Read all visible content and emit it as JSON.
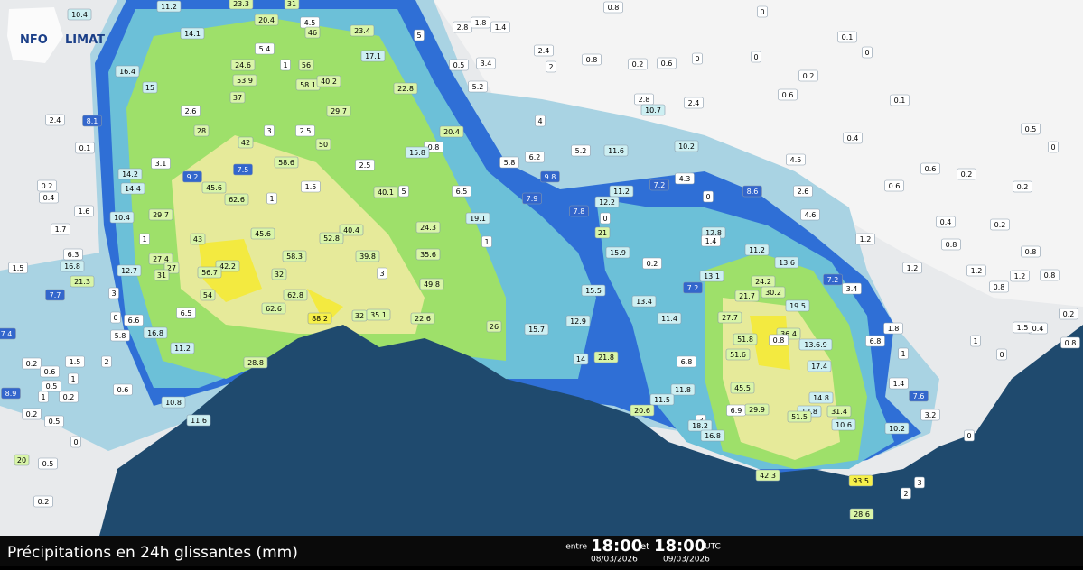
{
  "logo": {
    "left": "NFO",
    "right": "LIMAT"
  },
  "footer": {
    "title": "Précipitations en 24h glissantes (mm)",
    "between": "entre",
    "from_time": "18:00",
    "and": "et",
    "to_time": "18:00",
    "unit": "UTC",
    "from_date": "08/03/2026",
    "to_date": "09/03/2026"
  },
  "stations": [
    "10.4",
    "11.2",
    "23.3",
    "20.4",
    "31",
    "14.1",
    "4.5",
    "46",
    "23.4",
    "5",
    "2.8",
    "1.8",
    "1.4",
    "0.8",
    "0",
    "0.1",
    "5.4",
    "24.6",
    "1",
    "56",
    "17.1",
    "0.5",
    "3.4",
    "2.4",
    "2",
    "0.8",
    "0.2",
    "0.6",
    "0",
    "0",
    "0",
    "0.2",
    "16.4",
    "53.9",
    "58.1",
    "40.2",
    "22.8",
    "5.2",
    "2.8",
    "2.4",
    "0.6",
    "0.1",
    "15",
    "37",
    "2.6",
    "29.7",
    "2.4",
    "8.1",
    "10.7",
    "4",
    "28",
    "3",
    "2.5",
    "20.4",
    "0.5",
    "42",
    "50",
    "0.8",
    "15.8",
    "0.4",
    "0.1",
    "6.2",
    "5.2",
    "11.6",
    "10.2",
    "4.5",
    "0",
    "3.1",
    "58.6",
    "2.5",
    "5.8",
    "0.6",
    "0.2",
    "14.2",
    "7.5",
    "9.2",
    "9.8",
    "4.3",
    "14.4",
    "0.2",
    "45.6",
    "1.5",
    "40.1",
    "5",
    "6.5",
    "11.2",
    "7.2",
    "8.6",
    "2.6",
    "0.6",
    "0.2",
    "0.4",
    "62.6",
    "1",
    "7.9",
    "0",
    "12.2",
    "1.6",
    "7.8",
    "29.7",
    "10.4",
    "0",
    "40.4",
    "24.3",
    "19.1",
    "4.6",
    "0.2",
    "0.4",
    "12.8",
    "1.7",
    "45.6",
    "43",
    "52.8",
    "1",
    "21",
    "1.4",
    "1.2",
    "1",
    "0.8",
    "0.8",
    "6.3",
    "58.3",
    "39.8",
    "35.6",
    "11.2",
    "13.6",
    "16.8",
    "27.4",
    "27",
    "42.2",
    "15.9",
    "0.2",
    "1.5",
    "56.7",
    "32",
    "12.7",
    "31",
    "3",
    "21.3",
    "13.1",
    "24.2",
    "7.2",
    "1.2",
    "1.2",
    "1.2",
    "0.8",
    "49.8",
    "15.5",
    "7.2",
    "0.8",
    "7.7",
    "54",
    "62.8",
    "3",
    "21.7",
    "30.2",
    "3.4",
    "13.4",
    "19.5",
    "62.6",
    "6.5",
    "88.2",
    "32",
    "35.1",
    "22.6",
    "0",
    "12.9",
    "11.4",
    "27.7",
    "26",
    "15.7",
    "0.2",
    "1.8",
    "6.6",
    "16.8",
    "5.8",
    "36.4",
    "0.8",
    "51.8",
    "0.4",
    "1.5",
    "7.4",
    "6.8",
    "13.6.9",
    "1",
    "0.8",
    "11.2",
    "1",
    "51.6",
    "0",
    "21.8",
    "14",
    "1.5",
    "2",
    "28.8",
    "6.8",
    "17.4",
    "0.2",
    "0.6",
    "1",
    "11.8",
    "45.5",
    "0.6",
    "0.5",
    "1.4",
    "8.9",
    "14.8",
    "1",
    "0.2",
    "7.6",
    "11.5",
    "10.8",
    "20.6",
    "6.9",
    "29.9",
    "12.8",
    "31.4",
    "3",
    "3.2",
    "51.5",
    "0.2",
    "0.5",
    "11.6",
    "18.2",
    "10.6",
    "10.2",
    "0",
    "0",
    "16.8",
    "20",
    "0.5",
    "3",
    "42.3",
    "93.5",
    "2",
    "0.2",
    "28.6"
  ]
}
